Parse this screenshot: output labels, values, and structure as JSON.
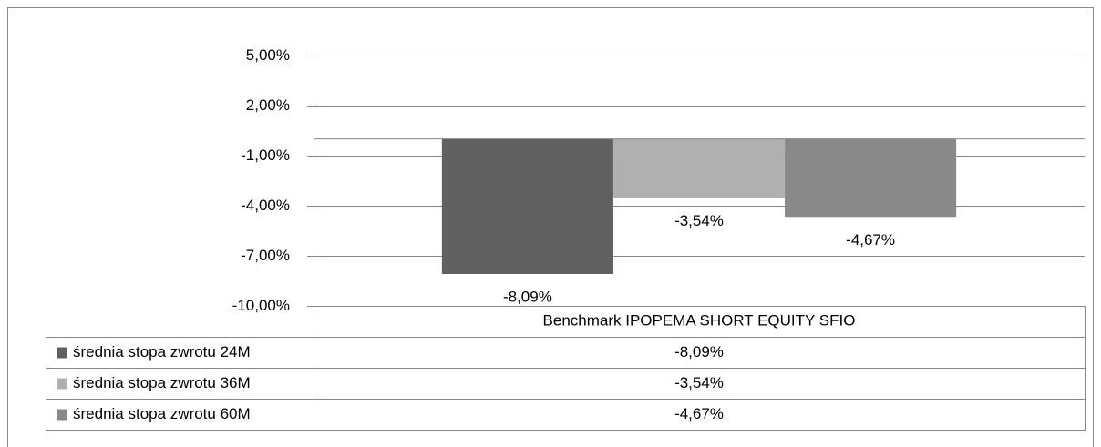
{
  "chart_data": {
    "type": "bar",
    "categories": [
      "Benchmark IPOPEMA SHORT EQUITY SFIO"
    ],
    "series": [
      {
        "name": "średnia stopa zwrotu 24M",
        "color": "#606060",
        "values": [
          -8.09
        ],
        "value_labels": [
          "-8,09%"
        ]
      },
      {
        "name": "średnia stopa zwrotu 36M",
        "color": "#b0b0b0",
        "values": [
          -3.54
        ],
        "value_labels": [
          "-3,54%"
        ]
      },
      {
        "name": "średnia stopa zwrotu 60M",
        "color": "#898989",
        "values": [
          -4.67
        ],
        "value_labels": [
          "-4,67%"
        ]
      }
    ],
    "ylim": [
      -10,
      5
    ],
    "yticks": [
      {
        "value": 5,
        "label": "5,00%"
      },
      {
        "value": 2,
        "label": "2,00%"
      },
      {
        "value": -1,
        "label": "-1,00%"
      },
      {
        "value": -4,
        "label": "-4,00%"
      },
      {
        "value": -7,
        "label": "-7,00%"
      },
      {
        "value": -10,
        "label": "-10,00%"
      }
    ],
    "grid": true,
    "data_table": true
  }
}
